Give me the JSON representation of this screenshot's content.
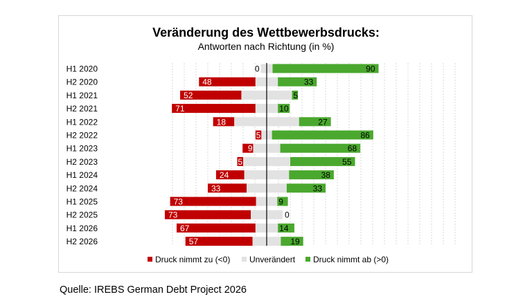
{
  "chart_data": {
    "type": "bar",
    "subtype": "diverging-stacked-horizontal",
    "title": "Veränderung des Wettbewerbsdrucks:",
    "subtitle": "Antworten nach Richtung (in %)",
    "categories": [
      "H1 2020",
      "H2 2020",
      "H1 2021",
      "H2 2021",
      "H1 2022",
      "H2 2022",
      "H1 2023",
      "H2 2023",
      "H1 2024",
      "H2 2024",
      "H1 2025",
      "H2 2025",
      "H1 2026",
      "H2 2026"
    ],
    "series": [
      {
        "name": "Druck nimmt zu (<0)",
        "color": "#c00000",
        "values": [
          0,
          48,
          52,
          71,
          18,
          5,
          9,
          5,
          24,
          33,
          73,
          73,
          67,
          57
        ]
      },
      {
        "name": "Unverändert",
        "color": "#e2e2e2",
        "values": [
          10,
          19,
          43,
          19,
          55,
          9,
          23,
          40,
          38,
          34,
          18,
          27,
          19,
          24
        ]
      },
      {
        "name": "Druck nimmt ab (>0)",
        "color": "#4aa82e",
        "values": [
          90,
          33,
          5,
          10,
          27,
          86,
          68,
          55,
          38,
          33,
          9,
          0,
          14,
          19
        ]
      }
    ],
    "legend_position": "bottom",
    "gridlines": "vertical-dashed"
  },
  "source": "Quelle: IREBS German Debt Project 2026"
}
